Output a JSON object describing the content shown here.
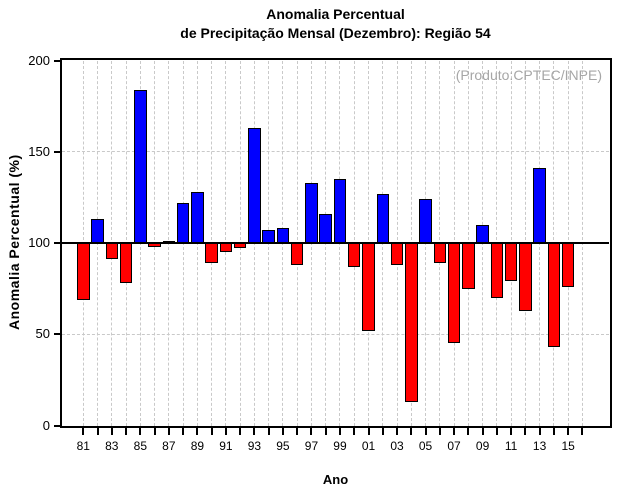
{
  "chart_data": {
    "type": "bar",
    "title_line1": "Anomalia Percentual",
    "title_line2": "de Precipitação Mensal (Dezembro): Região 54",
    "annotation": "(Produto:CPTEC/INPE)",
    "xlabel": "Ano",
    "ylabel": "Anomalia Percentual (%)",
    "ylim": [
      0,
      200
    ],
    "yticks": [
      0,
      50,
      100,
      150,
      200
    ],
    "baseline": 100,
    "dashed_hgrid_values": [
      50,
      150
    ],
    "grid": true,
    "legend_position": "none",
    "positive_color": "#0000ff",
    "negative_color": "#ff0000",
    "grid_color": "#c9c9c9",
    "annotation_color": "#a6a6a6",
    "x_tick_label_years": [
      "81",
      "83",
      "85",
      "87",
      "89",
      "91",
      "93",
      "95",
      "97",
      "99",
      "01",
      "03",
      "05",
      "07",
      "09",
      "11",
      "13",
      "15"
    ],
    "categories": [
      "81",
      "82",
      "83",
      "84",
      "85",
      "86",
      "87",
      "88",
      "89",
      "90",
      "91",
      "92",
      "93",
      "94",
      "95",
      "96",
      "97",
      "98",
      "99",
      "00",
      "01",
      "02",
      "03",
      "04",
      "05",
      "06",
      "07",
      "08",
      "09",
      "10",
      "11",
      "12",
      "13",
      "14",
      "15"
    ],
    "values": [
      69,
      113,
      91,
      78,
      184,
      98,
      101,
      122,
      128,
      89,
      95,
      97,
      163,
      107,
      108,
      88,
      133,
      116,
      135,
      87,
      52,
      127,
      88,
      13,
      124,
      89,
      45,
      75,
      110,
      70,
      79,
      63,
      141,
      43,
      76
    ]
  }
}
